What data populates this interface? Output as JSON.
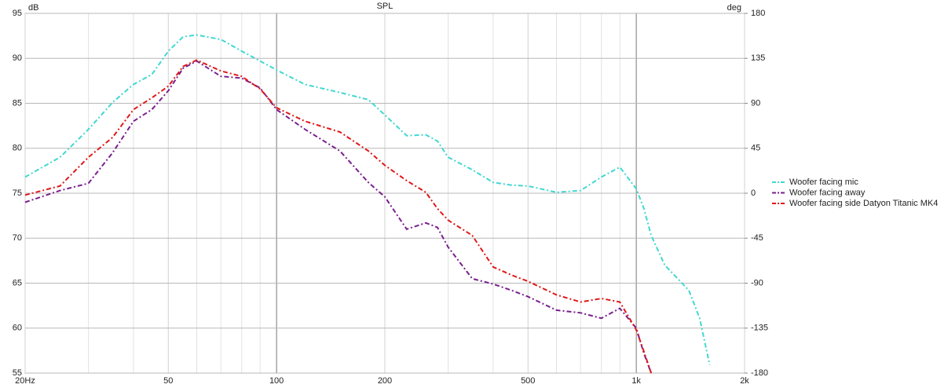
{
  "chart_data": {
    "type": "line",
    "title": "SPL",
    "ylabel": "dB",
    "y2label": "deg",
    "xscale": "log",
    "x": [
      20,
      25,
      30,
      35,
      40,
      45,
      50,
      55,
      60,
      70,
      80,
      90,
      100,
      120,
      150,
      180,
      200,
      230,
      260,
      280,
      300,
      350,
      400,
      450,
      500,
      600,
      700,
      800,
      900,
      1000,
      1050,
      1100,
      1200,
      1400,
      1500,
      1600
    ],
    "series": [
      {
        "name": "Woofer facing mic",
        "color": "#40d8d0",
        "values": [
          76.8,
          79,
          82.1,
          85.1,
          87.1,
          88.2,
          90.8,
          92.4,
          92.6,
          92.1,
          90.8,
          89.7,
          88.7,
          87.1,
          86.2,
          85.4,
          83.7,
          81.4,
          81.5,
          80.8,
          79,
          77.6,
          76.2,
          75.9,
          75.8,
          75.1,
          75.3,
          76.8,
          77.9,
          75.5,
          73.3,
          70.3,
          67,
          64.2,
          61.1,
          55.9
        ]
      },
      {
        "name": "Woofer facing away",
        "color": "#7a1f8e",
        "values": [
          74,
          75.3,
          76.1,
          79.5,
          83,
          84.3,
          86.4,
          88.9,
          89.7,
          88,
          87.8,
          86.7,
          84.3,
          82.1,
          79.7,
          76.2,
          74.6,
          71,
          71.7,
          71.2,
          69,
          65.5,
          64.9,
          64.2,
          63.5,
          62,
          61.7,
          61.1,
          62.2,
          60,
          57.2,
          55,
          null,
          null,
          null,
          null
        ]
      },
      {
        "name": "Woofer facing side Datyon Titanic MK4",
        "color": "#e01818",
        "values": [
          74.8,
          75.8,
          79,
          81.2,
          84.3,
          85.6,
          86.9,
          89.1,
          89.8,
          88.6,
          88,
          86.6,
          84.5,
          83,
          81.8,
          79.7,
          78.1,
          76.4,
          75.1,
          73.3,
          72,
          70.3,
          66.8,
          65.9,
          65.2,
          63.7,
          62.9,
          63.3,
          62.9,
          59.8,
          57.4,
          55,
          null,
          null,
          null,
          null
        ]
      }
    ],
    "xlim": [
      20,
      2000
    ],
    "xticks": [
      {
        "value": 20,
        "label": "20Hz"
      },
      50,
      100,
      200,
      500,
      {
        "value": 1000,
        "label": "1k"
      },
      {
        "value": 2000,
        "label": "2k"
      }
    ],
    "xminorticks": [
      30,
      40,
      60,
      70,
      80,
      90,
      300,
      400,
      600,
      700,
      800,
      900
    ],
    "ylim": [
      55,
      95
    ],
    "yticks": [
      55,
      60,
      65,
      70,
      75,
      80,
      85,
      90,
      95
    ],
    "y2lim": [
      -180,
      180
    ],
    "y2ticks": [
      -180,
      -135,
      -90,
      -45,
      0,
      45,
      90,
      135,
      180
    ],
    "grid": true,
    "legend": "right"
  }
}
